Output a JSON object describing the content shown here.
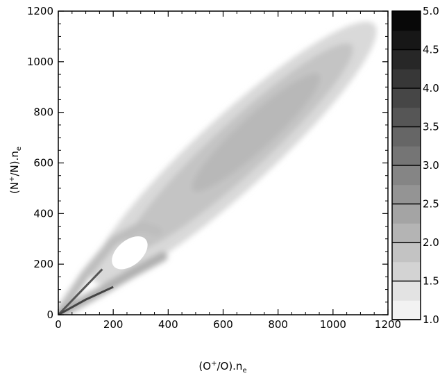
{
  "chart_data": {
    "type": "heatmap",
    "xlabel_base": "(O",
    "xlabel_sup": "+",
    "xlabel_mid": "/O).n",
    "xlabel_sub": "e",
    "ylabel_base": "(N",
    "ylabel_sup": "+",
    "ylabel_mid": "/N).n",
    "ylabel_sub": "e",
    "xlim": [
      0,
      1200
    ],
    "ylim": [
      0,
      1200
    ],
    "x_ticks": [
      0,
      200,
      400,
      600,
      800,
      1000,
      1200
    ],
    "y_ticks": [
      0,
      200,
      400,
      600,
      800,
      1000,
      1200
    ],
    "x_tick_labels": [
      "0",
      "200",
      "400",
      "600",
      "800",
      "1000",
      "1200"
    ],
    "y_tick_labels": [
      "0",
      "200",
      "400",
      "600",
      "800",
      "1000",
      "1200"
    ],
    "colorbar": {
      "range": [
        1.0,
        5.0
      ],
      "ticks": [
        1.0,
        1.5,
        2.0,
        2.5,
        3.0,
        3.5,
        4.0,
        4.5,
        5.0
      ],
      "tick_labels": [
        "1.0",
        "1.5",
        "2.0",
        "2.5",
        "3.0",
        "3.5",
        "4.0",
        "4.5",
        "5.0"
      ],
      "levels": 16,
      "scale": "grayscale-white-to-black"
    },
    "distribution": {
      "description_values": "approximate density region, data units",
      "main_lobe": {
        "center": [
          640,
          640
        ],
        "major_dir_deg": 45,
        "semi_major": 720,
        "semi_minor": 140,
        "tip_top": [
          1150,
          1140
        ]
      },
      "lower_branch_upper_edge": [
        [
          0,
          0
        ],
        [
          100,
          160
        ],
        [
          200,
          290
        ],
        [
          300,
          350
        ],
        [
          360,
          330
        ]
      ],
      "lower_branch_lower_edge": [
        [
          0,
          0
        ],
        [
          150,
          90
        ],
        [
          260,
          160
        ],
        [
          380,
          230
        ]
      ],
      "density_range": [
        1.0,
        3.0
      ]
    },
    "grid": false,
    "legend": "colorbar-right"
  }
}
